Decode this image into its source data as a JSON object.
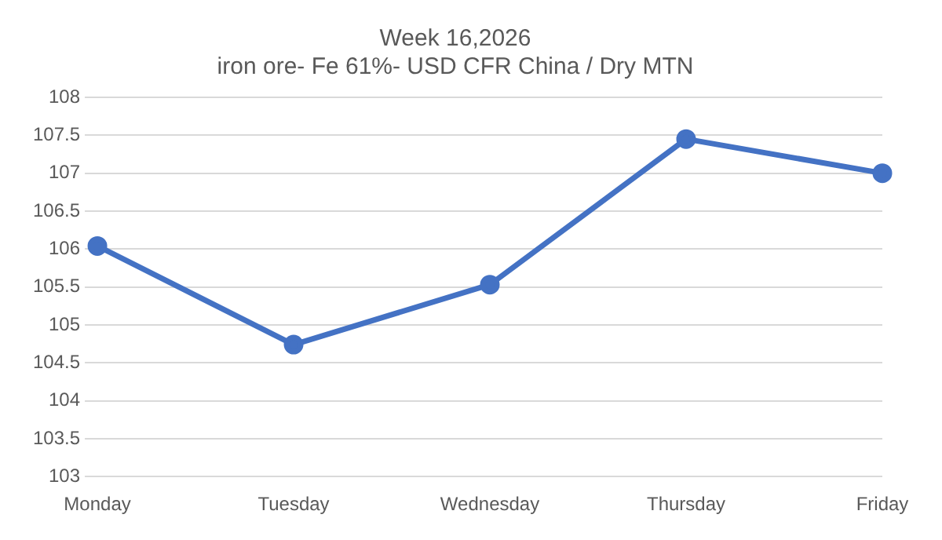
{
  "chart_data": {
    "type": "line",
    "title": "Week 16,2026",
    "subtitle": "iron ore- Fe 61%- USD CFR China / Dry MTN",
    "categories": [
      "Monday",
      "Tuesday",
      "Wednesday",
      "Thursday",
      "Friday"
    ],
    "series": [
      {
        "color": "#4472c4",
        "values": [
          106.04,
          104.74,
          105.53,
          107.45,
          107.0
        ]
      }
    ],
    "ylim": [
      103,
      108
    ],
    "yticks": [
      103,
      103.5,
      104,
      104.5,
      105,
      105.5,
      106,
      106.5,
      107,
      107.5,
      108
    ],
    "grid": "y",
    "marker": "circle",
    "line_style": "solid",
    "legend": false
  }
}
